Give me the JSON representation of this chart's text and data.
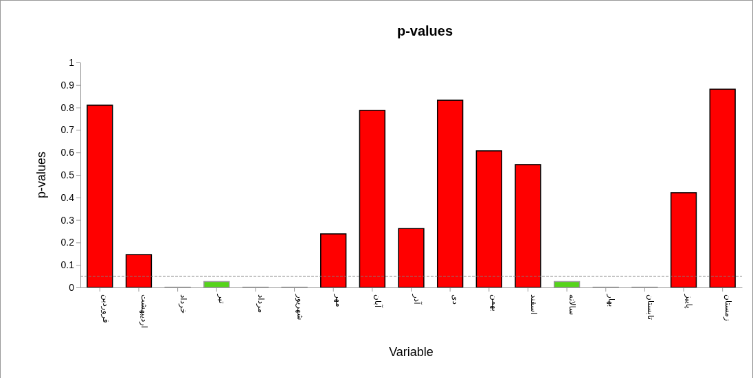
{
  "chart_data": {
    "type": "bar",
    "title": "p-values",
    "xlabel": "Variable",
    "ylabel": "p-values",
    "categories": [
      "فروردین",
      "اردیبهشت",
      "خرداد",
      "تیر",
      "مرداد",
      "شهریور",
      "مهر",
      "آبان",
      "آذر",
      "دی",
      "بهمن",
      "اسفند",
      "سالانه",
      "بهار",
      "تابستان",
      "پاییز",
      "زمستان"
    ],
    "values": [
      0.81,
      0.146,
      0.001,
      0.026,
      0.001,
      0.001,
      0.238,
      0.787,
      0.262,
      0.832,
      0.607,
      0.546,
      0.026,
      0.001,
      0.001,
      0.421,
      0.881
    ],
    "colors": [
      "#ff0000",
      "#ff0000",
      "#55d41a",
      "#55d41a",
      "#55d41a",
      "#55d41a",
      "#ff0000",
      "#ff0000",
      "#ff0000",
      "#ff0000",
      "#ff0000",
      "#ff0000",
      "#55d41a",
      "#55d41a",
      "#55d41a",
      "#ff0000",
      "#ff0000"
    ],
    "ylim": [
      0,
      1
    ],
    "yticks": [
      0,
      0.1,
      0.2,
      0.3,
      0.4,
      0.5,
      0.6,
      0.7,
      0.8,
      0.9,
      1
    ],
    "ref_lines": [
      {
        "axis": "y",
        "value": 0.05,
        "label": null,
        "color": "#808080",
        "line_style": "dashed"
      }
    ],
    "grid": false
  }
}
